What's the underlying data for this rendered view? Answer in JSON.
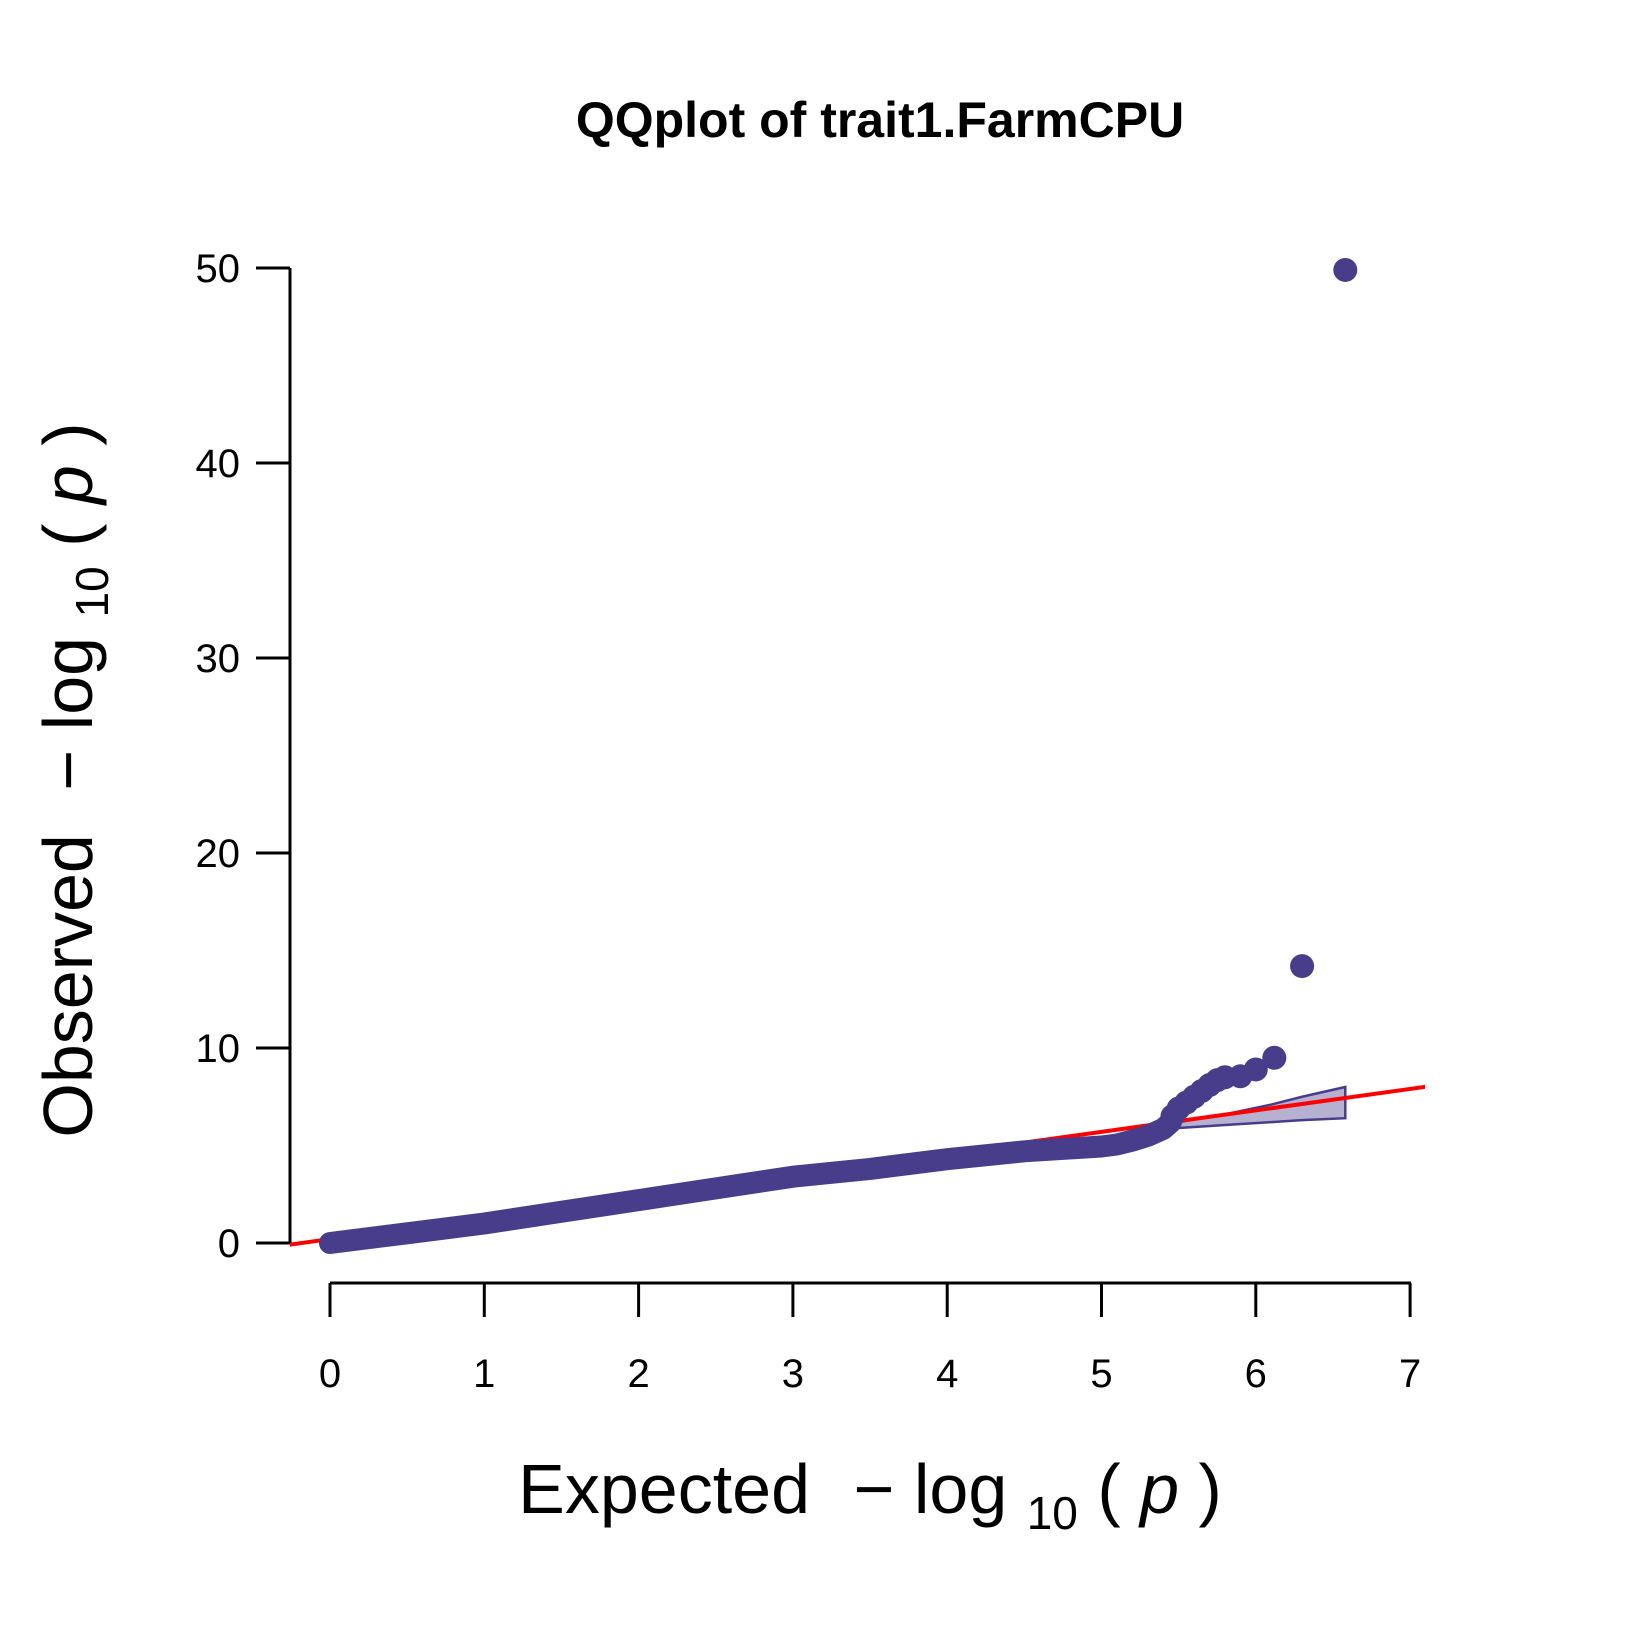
{
  "chart_data": {
    "type": "scatter",
    "title": "QQplot of trait1.FarmCPU",
    "xlabel": {
      "prefix": "Expected",
      "minus": "−",
      "log": "log",
      "base": "10",
      "paren_open": "(",
      "p": "p",
      "paren_close": ")"
    },
    "ylabel": {
      "prefix": "Observed",
      "minus": "−",
      "log": "log",
      "base": "10",
      "paren_open": "(",
      "p": "p",
      "paren_close": ")"
    },
    "xlim": [
      0,
      7
    ],
    "ylim": [
      0,
      50
    ],
    "x_ticks": [
      "0",
      "1",
      "2",
      "3",
      "4",
      "5",
      "6",
      "7"
    ],
    "y_ticks": [
      "0",
      "10",
      "20",
      "30",
      "40",
      "50"
    ],
    "grid": false,
    "legend": "none",
    "point_color": "#483D8B",
    "line_color": "#FF0000",
    "band_color": "#483D8B",
    "reference_line": {
      "slope": 1.1,
      "intercept": 0.2,
      "x_range": [
        -0.3,
        7.6
      ]
    },
    "observed_curve": [
      [
        0,
        0
      ],
      [
        0.5,
        0.5
      ],
      [
        1,
        1.0
      ],
      [
        1.5,
        1.6
      ],
      [
        2,
        2.2
      ],
      [
        2.5,
        2.8
      ],
      [
        3,
        3.4
      ],
      [
        3.5,
        3.8
      ],
      [
        4,
        4.3
      ],
      [
        4.5,
        4.7
      ],
      [
        5,
        4.95
      ],
      [
        5.1,
        5.05
      ],
      [
        5.2,
        5.25
      ],
      [
        5.3,
        5.5
      ],
      [
        5.4,
        5.85
      ],
      [
        5.45,
        6.2
      ]
    ],
    "observed_points": [
      [
        5.46,
        6.5
      ],
      [
        5.5,
        6.9
      ],
      [
        5.55,
        7.2
      ],
      [
        5.6,
        7.5
      ],
      [
        5.65,
        7.8
      ],
      [
        5.7,
        8.1
      ],
      [
        5.75,
        8.35
      ],
      [
        5.8,
        8.5
      ],
      [
        5.9,
        8.55
      ],
      [
        6.0,
        8.9
      ],
      [
        6.12,
        9.5
      ],
      [
        6.3,
        14.2
      ],
      [
        6.58,
        49.9
      ]
    ],
    "confidence_band": {
      "x": [
        5.3,
        5.5,
        5.8,
        6.1,
        6.3,
        6.58
      ],
      "upper": [
        5.8,
        6.2,
        6.6,
        7.1,
        7.5,
        8.0
      ],
      "lower": [
        5.7,
        5.9,
        6.05,
        6.2,
        6.3,
        6.4
      ]
    }
  }
}
